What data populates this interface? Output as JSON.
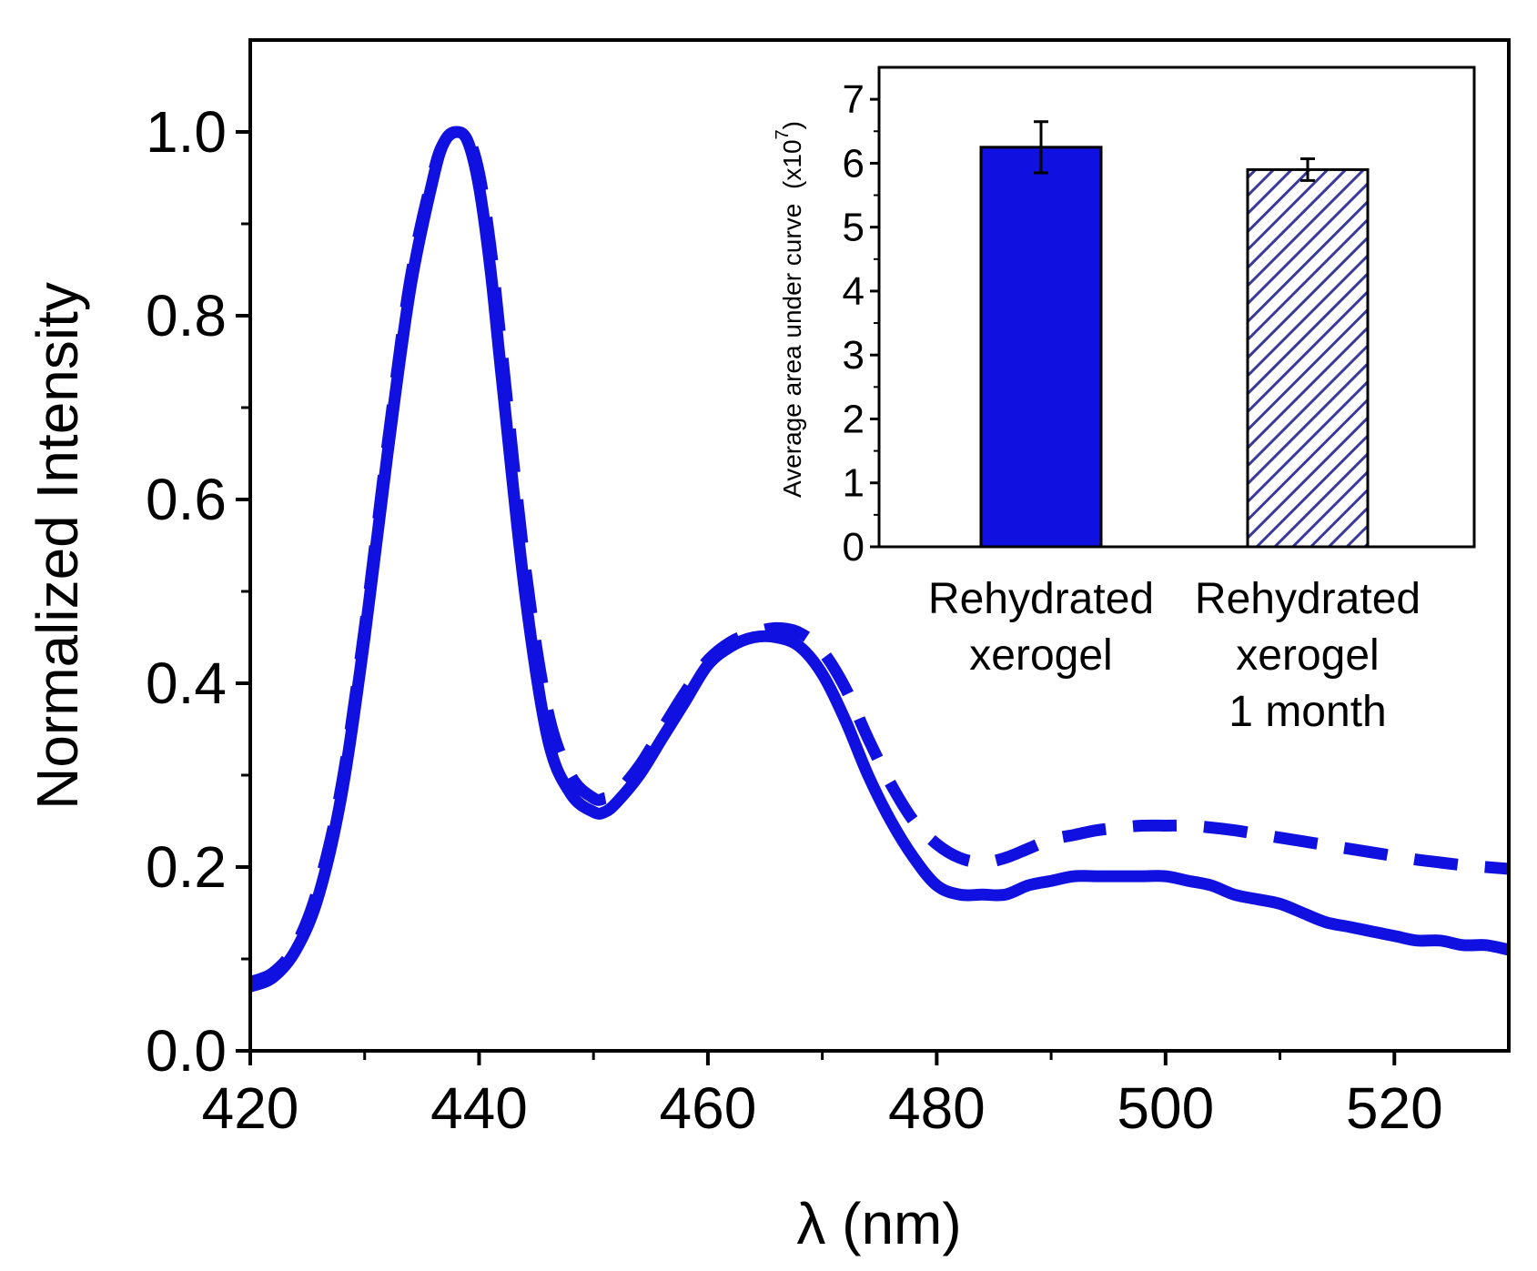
{
  "chart_data": [
    {
      "type": "line",
      "xlabel": "λ (nm)",
      "ylabel": "Normalized Intensity",
      "xlim": [
        420,
        530
      ],
      "ylim": [
        0.0,
        1.1
      ],
      "xticks": [
        "420",
        "440",
        "460",
        "480",
        "500",
        "520"
      ],
      "yticks": [
        "0.0",
        "0.2",
        "0.4",
        "0.6",
        "0.8",
        "1.0"
      ],
      "color": "#1010e0",
      "series": [
        {
          "name": "solid",
          "style": "solid",
          "x": [
            420,
            422,
            424,
            426,
            428,
            430,
            432,
            434,
            436,
            437,
            438,
            439,
            440,
            441,
            442,
            444,
            446,
            448,
            450,
            451,
            452,
            454,
            456,
            458,
            460,
            462,
            464,
            466,
            468,
            470,
            472,
            474,
            476,
            478,
            480,
            482,
            484,
            486,
            488,
            490,
            492,
            494,
            496,
            498,
            500,
            502,
            504,
            506,
            508,
            510,
            512,
            514,
            516,
            518,
            520,
            522,
            524,
            526,
            528,
            530
          ],
          "y": [
            0.07,
            0.08,
            0.11,
            0.17,
            0.28,
            0.45,
            0.65,
            0.83,
            0.95,
            0.99,
            1.0,
            0.99,
            0.94,
            0.85,
            0.73,
            0.5,
            0.34,
            0.28,
            0.26,
            0.26,
            0.27,
            0.3,
            0.34,
            0.38,
            0.42,
            0.44,
            0.45,
            0.45,
            0.44,
            0.41,
            0.36,
            0.3,
            0.25,
            0.21,
            0.18,
            0.17,
            0.17,
            0.17,
            0.18,
            0.185,
            0.19,
            0.19,
            0.19,
            0.19,
            0.19,
            0.185,
            0.18,
            0.17,
            0.165,
            0.16,
            0.15,
            0.14,
            0.135,
            0.13,
            0.125,
            0.12,
            0.12,
            0.115,
            0.115,
            0.11
          ]
        },
        {
          "name": "dashed",
          "style": "dashed",
          "x": [
            420,
            422,
            424,
            426,
            428,
            430,
            432,
            434,
            436,
            437,
            438,
            439,
            440,
            441,
            442,
            444,
            446,
            448,
            450,
            451,
            452,
            454,
            456,
            458,
            460,
            462,
            464,
            466,
            468,
            470,
            472,
            474,
            476,
            478,
            480,
            482,
            484,
            486,
            488,
            490,
            492,
            494,
            496,
            498,
            500,
            502,
            504,
            506,
            508,
            510,
            512,
            514,
            516,
            518,
            520,
            522,
            524,
            526,
            528,
            530
          ],
          "y": [
            0.075,
            0.085,
            0.115,
            0.18,
            0.29,
            0.46,
            0.66,
            0.84,
            0.955,
            0.99,
            1.0,
            0.995,
            0.955,
            0.875,
            0.76,
            0.53,
            0.37,
            0.3,
            0.275,
            0.275,
            0.28,
            0.31,
            0.35,
            0.39,
            0.425,
            0.445,
            0.455,
            0.46,
            0.455,
            0.435,
            0.395,
            0.34,
            0.29,
            0.25,
            0.225,
            0.21,
            0.205,
            0.21,
            0.22,
            0.23,
            0.235,
            0.24,
            0.243,
            0.245,
            0.245,
            0.245,
            0.243,
            0.24,
            0.236,
            0.232,
            0.228,
            0.224,
            0.22,
            0.216,
            0.212,
            0.208,
            0.205,
            0.202,
            0.2,
            0.198
          ]
        }
      ]
    },
    {
      "type": "bar",
      "ylabel": "Average area under curve",
      "ylabel_unit": "(x10",
      "ylabel_exponent": "7",
      "ylabel_close": ")",
      "ylim": [
        0,
        7.5
      ],
      "yticks": [
        "0",
        "1",
        "2",
        "3",
        "4",
        "5",
        "6",
        "7"
      ],
      "categories": [
        {
          "lines": [
            "Rehydrated",
            "xerogel"
          ]
        },
        {
          "lines": [
            "Rehydrated",
            "xerogel",
            "1 month"
          ]
        }
      ],
      "values": [
        6.25,
        5.9
      ],
      "errors": [
        0.4,
        0.17
      ],
      "fills": [
        "solid",
        "hatched"
      ],
      "bar_color": "#1010e0",
      "hatch_color": "#3a3a9a"
    }
  ]
}
